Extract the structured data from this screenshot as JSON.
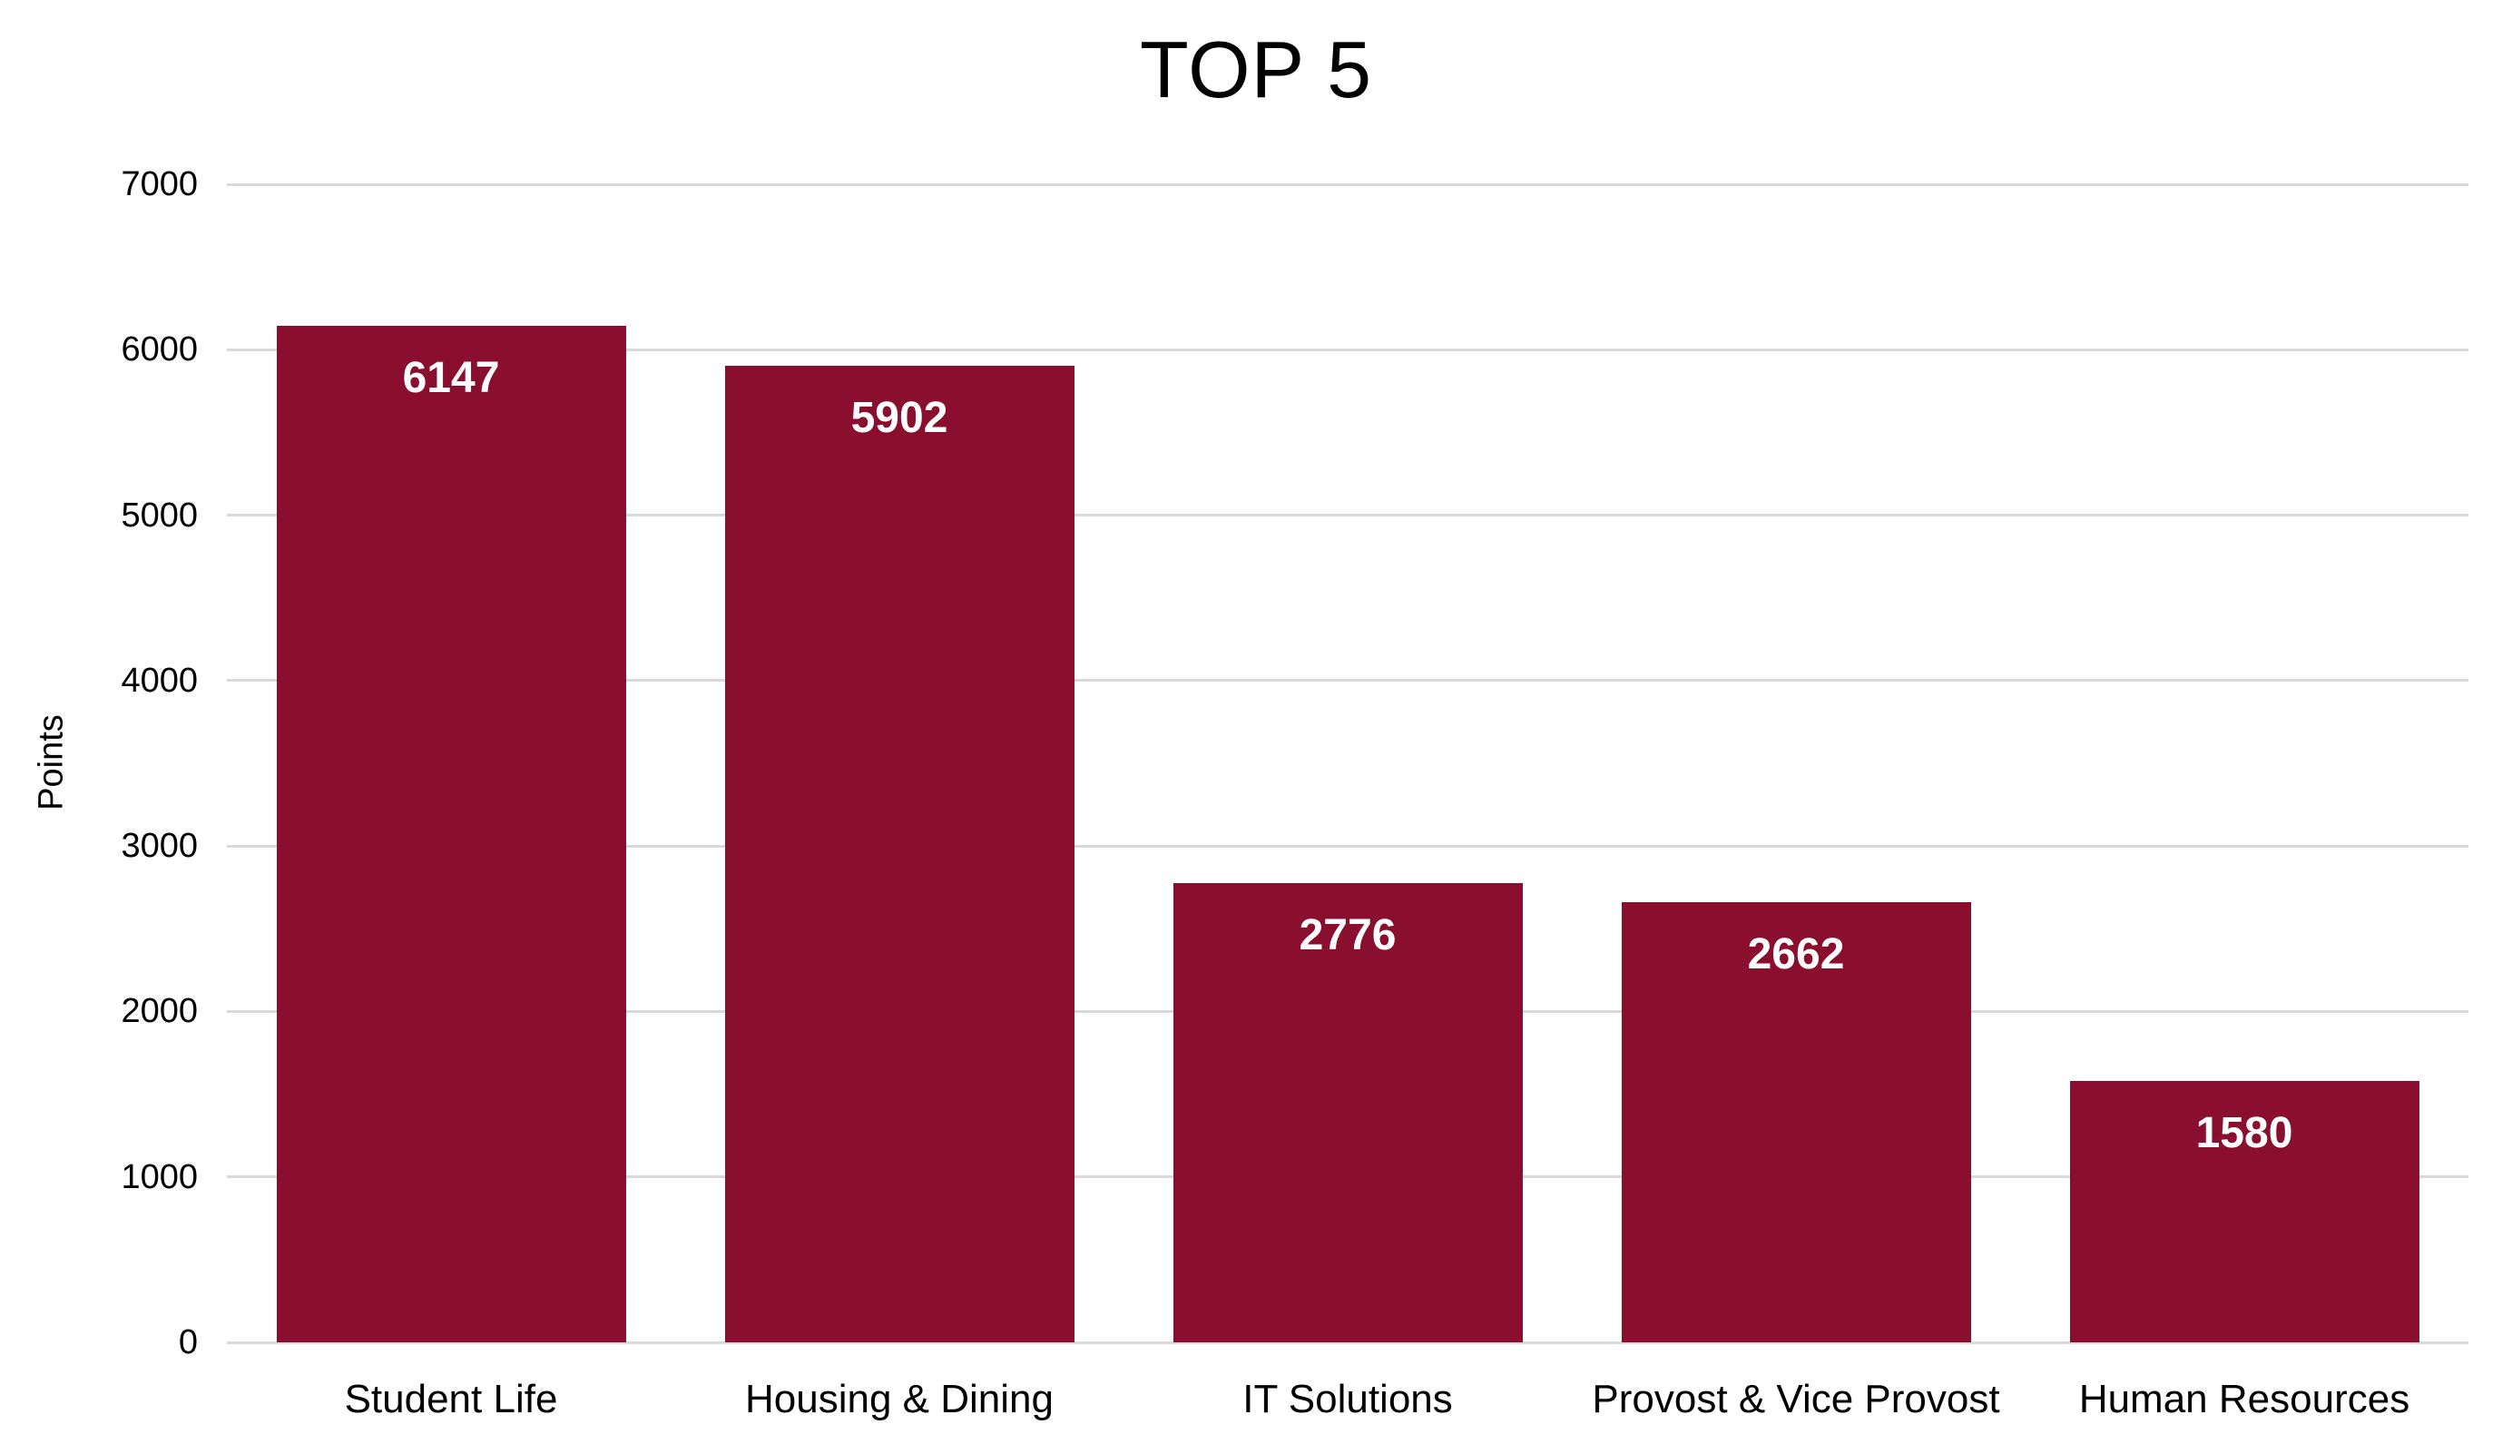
{
  "chart_data": {
    "type": "bar",
    "title": "TOP 5",
    "xlabel": "",
    "ylabel": "Points",
    "categories": [
      "Student Life",
      "Housing & Dining",
      "IT Solutions",
      "Provost & Vice Provost",
      "Human Resources"
    ],
    "values": [
      6147,
      5902,
      2776,
      2662,
      1580
    ],
    "value_labels": [
      "6147",
      "5902",
      "2776",
      "2662",
      "1580"
    ],
    "ytick_labels": [
      "0",
      "1000",
      "2000",
      "3000",
      "4000",
      "5000",
      "6000",
      "7000"
    ],
    "ylim": [
      0,
      7000
    ],
    "ytick_step": 1000,
    "grid": "horizontal",
    "legend_position": "none",
    "colors": {
      "bar": "#8A0E2E",
      "gridline": "#D9D9D9",
      "value_label_text": "#FFFFFF",
      "axis_text": "#000000",
      "background": "#FFFFFF"
    }
  }
}
